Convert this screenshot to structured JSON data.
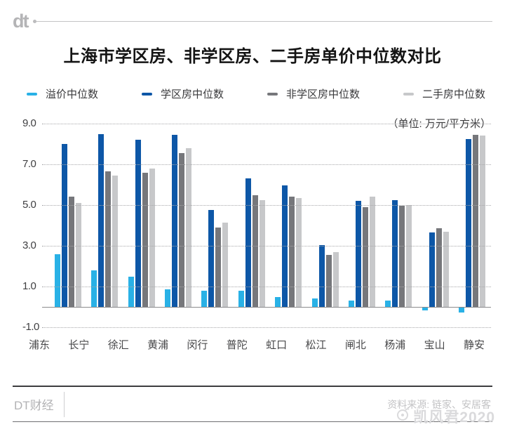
{
  "header": {
    "logo": "dt",
    "title": "上海市学区房、非学区房、二手房单价中位数对比"
  },
  "legend": [
    {
      "label": "溢价中位数",
      "color": "#29b1e6"
    },
    {
      "label": "学区房中位数",
      "color": "#0d57a7"
    },
    {
      "label": "非学区房中位数",
      "color": "#76777b"
    },
    {
      "label": "二手房中位数",
      "color": "#c7c8ca"
    }
  ],
  "chart_data": {
    "type": "bar",
    "title": "上海市学区房、非学区房、二手房单价中位数对比",
    "unit_label": "（单位: 万元/平方米）",
    "ylabel": "万元/平方米",
    "categories": [
      "浦东",
      "长宁",
      "徐汇",
      "黄浦",
      "闵行",
      "普陀",
      "虹口",
      "松江",
      "闸北",
      "杨浦",
      "宝山",
      "静安"
    ],
    "series": [
      {
        "name": "溢价中位数",
        "color": "#29b1e6",
        "values": [
          2.6,
          1.8,
          1.5,
          0.85,
          0.8,
          0.8,
          0.5,
          0.4,
          0.3,
          0.3,
          -0.15,
          -0.25
        ]
      },
      {
        "name": "学区房中位数",
        "color": "#0d57a7",
        "values": [
          8.0,
          8.5,
          8.2,
          8.45,
          4.75,
          6.3,
          5.95,
          3.05,
          5.2,
          5.25,
          3.65,
          8.25
        ]
      },
      {
        "name": "非学区房中位数",
        "color": "#76777b",
        "values": [
          5.4,
          6.65,
          6.6,
          7.55,
          3.9,
          5.5,
          5.4,
          2.55,
          4.9,
          4.95,
          3.85,
          8.45
        ]
      },
      {
        "name": "二手房中位数",
        "color": "#c7c8ca",
        "values": [
          5.1,
          6.45,
          6.8,
          7.8,
          4.15,
          5.25,
          5.35,
          2.7,
          5.4,
          5.0,
          3.7,
          8.4
        ]
      }
    ],
    "ylim": [
      -1.0,
      9.0
    ],
    "yticks": [
      9.0,
      7.0,
      5.0,
      3.0,
      1.0,
      -1.0
    ],
    "grid": "dotted-horizontal",
    "legend_position": "top"
  },
  "footer": {
    "brand": "DT财经",
    "source": "资料来源: 链家、安居客",
    "watermark": "凯风君2020"
  }
}
